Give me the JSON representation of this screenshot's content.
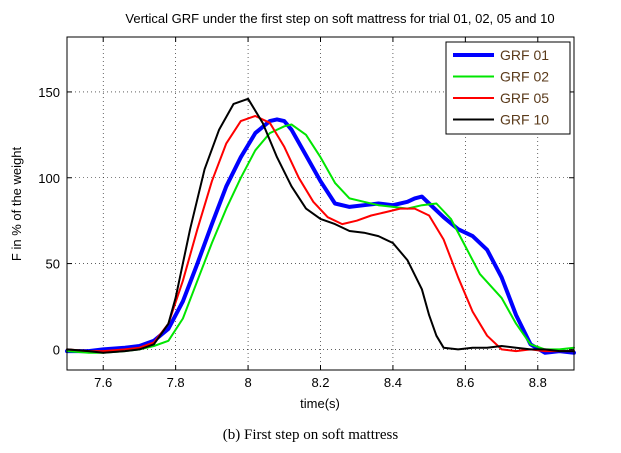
{
  "chart_data": {
    "type": "line",
    "title": "Vertical GRF under the first step on soft mattress for trial 01, 02, 05 and 10",
    "xlabel": "time(s)",
    "ylabel": "F in % of the weight",
    "xlim": [
      7.5,
      8.9
    ],
    "ylim": [
      -12,
      182
    ],
    "xticks": [
      "7.6",
      "7.8",
      "8",
      "8.2",
      "8.4",
      "8.6",
      "8.8"
    ],
    "yticks": [
      "0",
      "50",
      "100",
      "150"
    ],
    "grid": true,
    "legend_position": "top-right",
    "series": [
      {
        "name": "GRF 01",
        "color": "#0000ff",
        "x": [
          7.5,
          7.56,
          7.6,
          7.66,
          7.7,
          7.74,
          7.78,
          7.82,
          7.86,
          7.9,
          7.94,
          7.98,
          8.02,
          8.06,
          8.08,
          8.1,
          8.12,
          8.16,
          8.2,
          8.24,
          8.28,
          8.32,
          8.36,
          8.4,
          8.44,
          8.46,
          8.48,
          8.5,
          8.54,
          8.58,
          8.62,
          8.66,
          8.7,
          8.74,
          8.78,
          8.82,
          8.86,
          8.9
        ],
        "y": [
          -1,
          -1,
          0,
          1,
          2,
          5,
          12,
          28,
          50,
          73,
          95,
          112,
          126,
          133,
          134,
          133,
          128,
          113,
          98,
          85,
          83,
          84,
          85,
          84,
          86,
          88,
          89,
          85,
          77,
          70,
          66,
          58,
          42,
          20,
          3,
          -2,
          -1,
          -2
        ]
      },
      {
        "name": "GRF 02",
        "color": "#00e600",
        "x": [
          7.5,
          7.56,
          7.6,
          7.66,
          7.7,
          7.74,
          7.78,
          7.82,
          7.86,
          7.9,
          7.94,
          7.98,
          8.02,
          8.06,
          8.1,
          8.12,
          8.16,
          8.2,
          8.24,
          8.28,
          8.32,
          8.36,
          8.4,
          8.44,
          8.48,
          8.52,
          8.56,
          8.6,
          8.64,
          8.7,
          8.74,
          8.78,
          8.82,
          8.86,
          8.9
        ],
        "y": [
          -1,
          -2,
          -2,
          -1,
          0,
          2,
          5,
          18,
          40,
          62,
          82,
          100,
          116,
          126,
          130,
          131,
          125,
          112,
          97,
          88,
          86,
          84,
          83,
          82,
          84,
          85,
          76,
          60,
          44,
          30,
          15,
          3,
          0,
          0,
          1
        ]
      },
      {
        "name": "GRF 05",
        "color": "#ff0000",
        "x": [
          7.5,
          7.56,
          7.6,
          7.66,
          7.7,
          7.74,
          7.78,
          7.82,
          7.86,
          7.9,
          7.94,
          7.98,
          8.02,
          8.06,
          8.1,
          8.14,
          8.18,
          8.22,
          8.26,
          8.3,
          8.34,
          8.38,
          8.42,
          8.46,
          8.5,
          8.54,
          8.58,
          8.62,
          8.66,
          8.7,
          8.74,
          8.78,
          8.82,
          8.86,
          8.9
        ],
        "y": [
          0,
          -1,
          -1,
          0,
          1,
          4,
          15,
          40,
          70,
          98,
          120,
          133,
          136,
          132,
          118,
          100,
          86,
          77,
          73,
          75,
          78,
          80,
          82,
          82,
          78,
          64,
          42,
          22,
          8,
          0,
          -1,
          0,
          -1,
          -1,
          -1
        ]
      },
      {
        "name": "GRF 10",
        "color": "#000000",
        "x": [
          7.5,
          7.56,
          7.6,
          7.66,
          7.7,
          7.74,
          7.78,
          7.8,
          7.84,
          7.88,
          7.92,
          7.96,
          8.0,
          8.04,
          8.08,
          8.12,
          8.16,
          8.2,
          8.24,
          8.28,
          8.32,
          8.36,
          8.4,
          8.44,
          8.48,
          8.5,
          8.52,
          8.54,
          8.58,
          8.62,
          8.66,
          8.7,
          8.74,
          8.78,
          8.82,
          8.86,
          8.9
        ],
        "y": [
          0,
          -1,
          -2,
          -1,
          0,
          3,
          15,
          30,
          70,
          105,
          128,
          143,
          146,
          132,
          112,
          95,
          82,
          76,
          73,
          69,
          68,
          66,
          62,
          52,
          35,
          20,
          8,
          1,
          0,
          1,
          1,
          2,
          1,
          0,
          0,
          -1,
          -1
        ]
      }
    ]
  },
  "caption": "(b) First step on soft mattress"
}
